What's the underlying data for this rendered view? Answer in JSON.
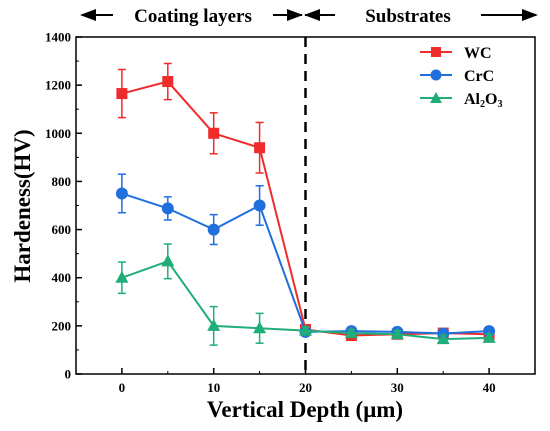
{
  "chart_data": {
    "type": "line",
    "ylabel": "Hardeness(HV)",
    "xlabel": "Vertical Depth (μm)",
    "xlim": [
      -5,
      45
    ],
    "ylim": [
      0,
      1400
    ],
    "xticks": [
      0,
      10,
      20,
      30,
      40
    ],
    "yticks": [
      0,
      200,
      400,
      600,
      800,
      1000,
      1200,
      1400
    ],
    "region_labels": {
      "left": "Coating layers",
      "right": "Substrates"
    },
    "divider_x": 20,
    "legend_position": "top-right",
    "series": [
      {
        "name": "WC",
        "color": "#ef2b2b",
        "marker": "square",
        "x": [
          0,
          5,
          10,
          15,
          20,
          25,
          30,
          35,
          40
        ],
        "y": [
          1165,
          1215,
          1000,
          940,
          185,
          160,
          165,
          170,
          165
        ],
        "err": [
          100,
          75,
          85,
          105,
          15,
          15,
          15,
          15,
          15
        ]
      },
      {
        "name": "CrC",
        "color": "#1f6fdc",
        "marker": "circle",
        "x": [
          0,
          5,
          10,
          15,
          20,
          25,
          30,
          35,
          40
        ],
        "y": [
          750,
          688,
          600,
          700,
          175,
          178,
          175,
          168,
          178
        ],
        "err": [
          80,
          48,
          62,
          82,
          15,
          15,
          15,
          15,
          15
        ]
      },
      {
        "name": "Al2O3",
        "color": "#1fae78",
        "marker": "triangle",
        "x": [
          0,
          5,
          10,
          15,
          20,
          25,
          30,
          35,
          40
        ],
        "y": [
          400,
          468,
          200,
          190,
          180,
          170,
          165,
          145,
          150
        ],
        "err": [
          65,
          72,
          80,
          62,
          15,
          15,
          15,
          15,
          15
        ]
      }
    ]
  },
  "legend": {
    "wc_label": "WC",
    "crc_label": "CrC",
    "al2o3_main": "Al",
    "al2o3_sub1": "2",
    "al2o3_mid": "O",
    "al2o3_sub2": "3"
  }
}
